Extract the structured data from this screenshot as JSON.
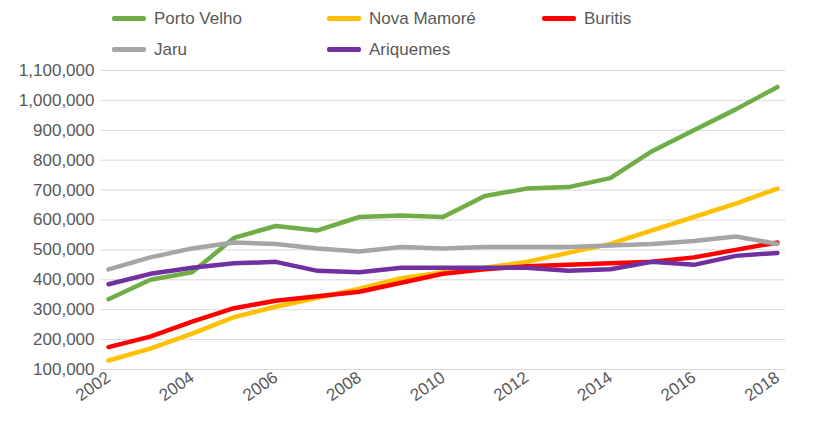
{
  "chart_data": {
    "type": "line",
    "x": [
      2002,
      2003,
      2004,
      2005,
      2006,
      2007,
      2008,
      2009,
      2010,
      2011,
      2012,
      2013,
      2014,
      2015,
      2016,
      2017,
      2018
    ],
    "series": [
      {
        "name": "Porto Velho",
        "color": "#70ad47",
        "values": [
          335000,
          400000,
          425000,
          540000,
          580000,
          565000,
          610000,
          615000,
          610000,
          680000,
          705000,
          710000,
          740000,
          830000,
          900000,
          970000,
          1045000
        ]
      },
      {
        "name": "Nova Mamoré",
        "color": "#ffc000",
        "values": [
          130000,
          170000,
          220000,
          275000,
          310000,
          340000,
          370000,
          405000,
          425000,
          440000,
          460000,
          490000,
          520000,
          565000,
          610000,
          655000,
          705000
        ]
      },
      {
        "name": "Buritis",
        "color": "#ff0000",
        "values": [
          175000,
          210000,
          260000,
          305000,
          330000,
          345000,
          360000,
          390000,
          420000,
          435000,
          445000,
          450000,
          455000,
          460000,
          475000,
          500000,
          525000
        ]
      },
      {
        "name": "Jaru",
        "color": "#a5a5a5",
        "values": [
          435000,
          475000,
          505000,
          525000,
          520000,
          505000,
          495000,
          510000,
          505000,
          510000,
          510000,
          510000,
          515000,
          520000,
          530000,
          545000,
          520000
        ]
      },
      {
        "name": "Ariquemes",
        "color": "#7030a0",
        "values": [
          385000,
          420000,
          440000,
          455000,
          460000,
          430000,
          425000,
          440000,
          440000,
          440000,
          440000,
          430000,
          435000,
          460000,
          450000,
          480000,
          490000
        ]
      }
    ],
    "xlim": [
      2002,
      2018
    ],
    "xticks": [
      2002,
      2004,
      2006,
      2008,
      2010,
      2012,
      2014,
      2016,
      2018
    ],
    "ylim": [
      100000,
      1100000
    ],
    "yticks": [
      {
        "value": 100000,
        "label": "100,000"
      },
      {
        "value": 200000,
        "label": "200,000"
      },
      {
        "value": 300000,
        "label": "300,000"
      },
      {
        "value": 400000,
        "label": "400,000"
      },
      {
        "value": 500000,
        "label": "500,000"
      },
      {
        "value": 600000,
        "label": "600,000"
      },
      {
        "value": 700000,
        "label": "700,000"
      },
      {
        "value": 800000,
        "label": "800,000"
      },
      {
        "value": 900000,
        "label": "900,000"
      },
      {
        "value": 1000000,
        "label": "1,000,000"
      },
      {
        "value": 1100000,
        "label": "1,100,000"
      }
    ],
    "grid": true,
    "legend": "top"
  }
}
